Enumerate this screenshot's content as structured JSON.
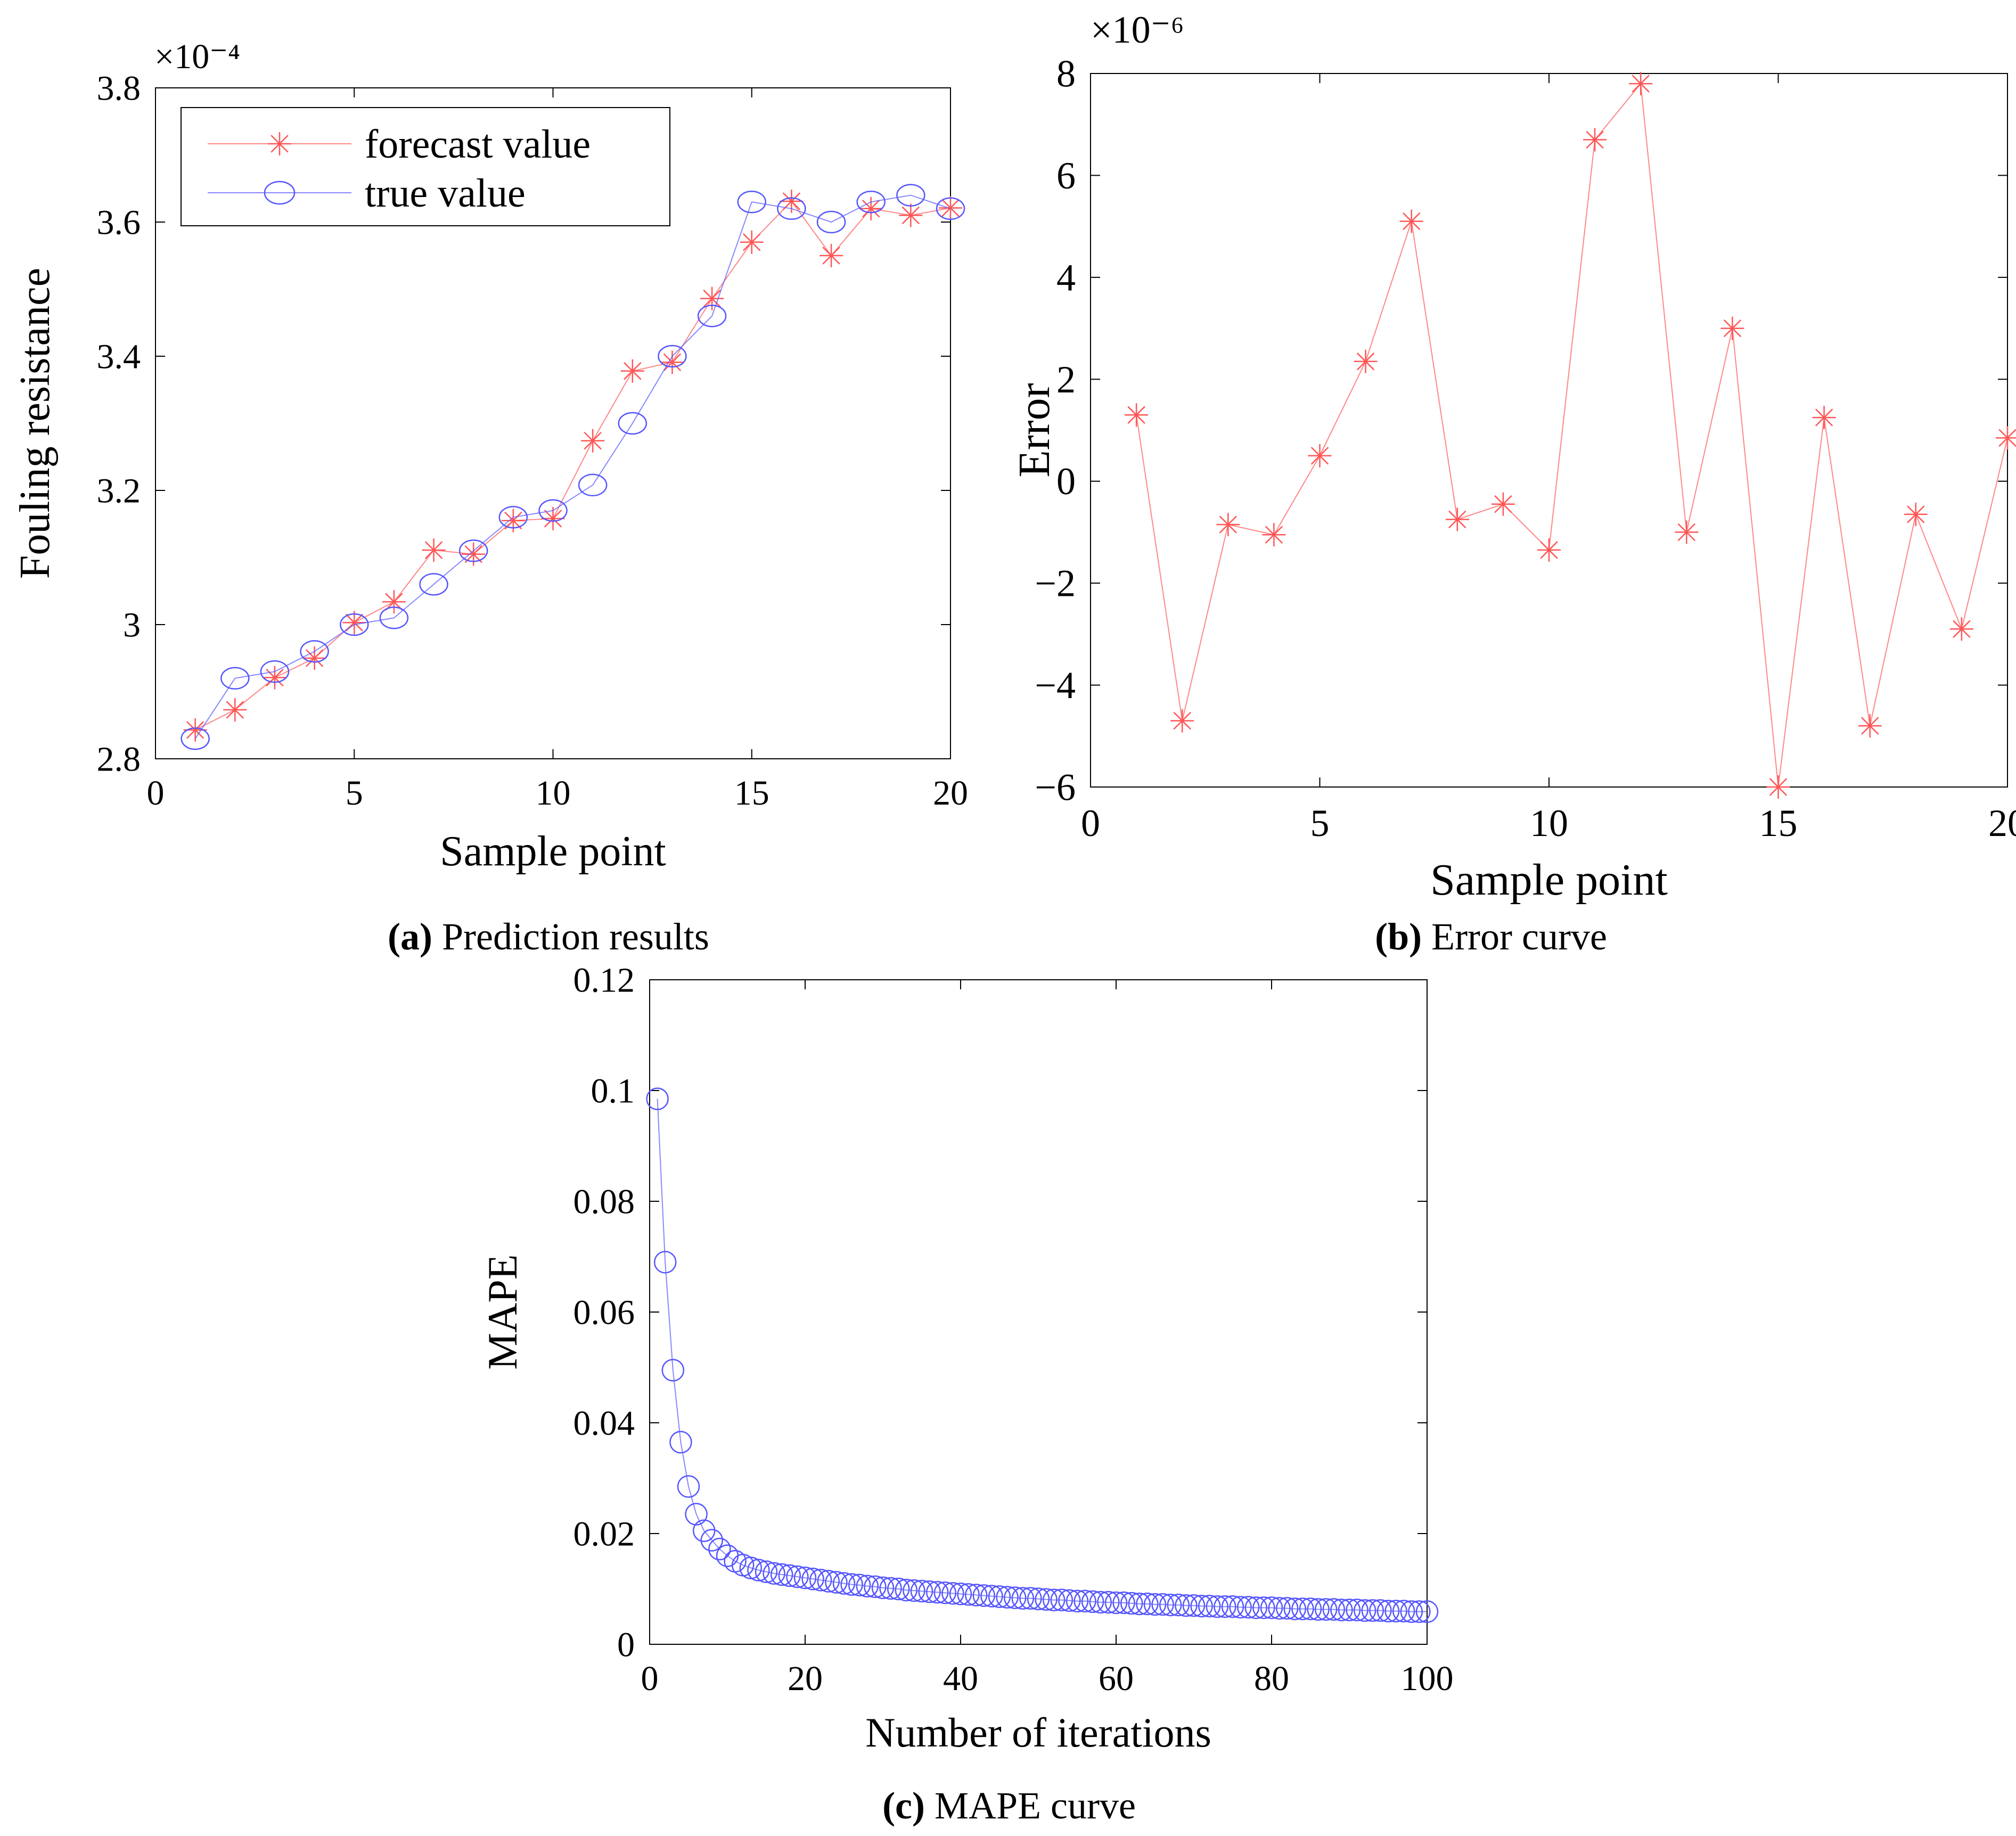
{
  "chart_data": [
    {
      "id": "a",
      "type": "line",
      "title": "",
      "xlabel": "Sample point",
      "ylabel": "Fouling resistance",
      "exponent_label": "×10⁻⁴",
      "xlim": [
        0,
        20
      ],
      "ylim": [
        2.8,
        3.8
      ],
      "xticks": [
        0,
        5,
        10,
        15,
        20
      ],
      "yticks": [
        2.8,
        3.0,
        3.2,
        3.4,
        3.6,
        3.8
      ],
      "ytick_labels": [
        "2.8",
        "3",
        "3.2",
        "3.4",
        "3.6",
        "3.8"
      ],
      "grid": false,
      "legend": "top-left",
      "x": [
        1,
        2,
        3,
        4,
        5,
        6,
        7,
        8,
        9,
        10,
        11,
        12,
        13,
        14,
        15,
        16,
        17,
        18,
        19,
        20
      ],
      "series": [
        {
          "name": "forecast value",
          "marker": "star",
          "color": "#ff5555",
          "values": [
            2.843,
            2.873,
            2.921,
            2.95,
            3.003,
            3.034,
            3.111,
            3.105,
            3.155,
            3.158,
            3.274,
            3.378,
            3.391,
            3.486,
            3.57,
            3.631,
            3.55,
            3.62,
            3.61,
            3.621
          ]
        },
        {
          "name": "true value",
          "marker": "circle",
          "color": "#5555ff",
          "values": [
            2.83,
            2.92,
            2.93,
            2.96,
            3.0,
            3.01,
            3.06,
            3.11,
            3.16,
            3.17,
            3.208,
            3.3,
            3.4,
            3.46,
            3.63,
            3.62,
            3.6,
            3.63,
            3.64,
            3.62
          ]
        }
      ],
      "caption_letter": "(a)",
      "caption_text": " Prediction results"
    },
    {
      "id": "b",
      "type": "line",
      "title": "",
      "xlabel": "Sample point",
      "ylabel": "Error",
      "exponent_label": "×10⁻⁶",
      "xlim": [
        0,
        20
      ],
      "ylim": [
        -6,
        8
      ],
      "xticks": [
        0,
        5,
        10,
        15,
        20
      ],
      "yticks": [
        -6,
        -4,
        -2,
        0,
        2,
        4,
        6,
        8
      ],
      "ytick_labels": [
        "−6",
        "−4",
        "−2",
        "0",
        "2",
        "4",
        "6",
        "8"
      ],
      "grid": false,
      "x": [
        1,
        2,
        3,
        4,
        5,
        6,
        7,
        8,
        9,
        10,
        11,
        12,
        13,
        14,
        15,
        16,
        17,
        18,
        19,
        20
      ],
      "series": [
        {
          "name": "error",
          "marker": "star",
          "color": "#ff5555",
          "values": [
            1.3,
            -4.7,
            -0.85,
            -1.05,
            0.5,
            2.35,
            5.1,
            -0.75,
            -0.45,
            -1.35,
            6.7,
            7.8,
            -1.0,
            3.0,
            -6.0,
            1.25,
            -4.8,
            -0.65,
            -2.9,
            0.85
          ]
        }
      ],
      "caption_letter": "(b)",
      "caption_text": " Error curve"
    },
    {
      "id": "c",
      "type": "line",
      "title": "",
      "xlabel": "Number of iterations",
      "ylabel": "MAPE",
      "xlim": [
        0,
        100
      ],
      "ylim": [
        0,
        0.12
      ],
      "xticks": [
        0,
        20,
        40,
        60,
        80,
        100
      ],
      "yticks": [
        0,
        0.02,
        0.04,
        0.06,
        0.08,
        0.1,
        0.12
      ],
      "ytick_labels": [
        "0",
        "0.02",
        "0.04",
        "0.06",
        "0.08",
        "0.1",
        "0.12"
      ],
      "grid": false,
      "x": [
        1,
        2,
        3,
        4,
        5,
        6,
        7,
        8,
        9,
        10,
        11,
        12,
        13,
        14,
        15,
        16,
        17,
        18,
        19,
        20,
        21,
        22,
        23,
        24,
        25,
        26,
        27,
        28,
        29,
        30,
        31,
        32,
        33,
        34,
        35,
        36,
        37,
        38,
        39,
        40,
        41,
        42,
        43,
        44,
        45,
        46,
        47,
        48,
        49,
        50,
        51,
        52,
        53,
        54,
        55,
        56,
        57,
        58,
        59,
        60,
        61,
        62,
        63,
        64,
        65,
        66,
        67,
        68,
        69,
        70,
        71,
        72,
        73,
        74,
        75,
        76,
        77,
        78,
        79,
        80,
        81,
        82,
        83,
        84,
        85,
        86,
        87,
        88,
        89,
        90,
        91,
        92,
        93,
        94,
        95,
        96,
        97,
        98,
        99,
        100
      ],
      "series": [
        {
          "name": "MAPE",
          "marker": "circle",
          "color": "#5555ff",
          "values": [
            0.0985,
            0.069,
            0.0495,
            0.0365,
            0.0285,
            0.0235,
            0.0205,
            0.0188,
            0.0172,
            0.016,
            0.015,
            0.0143,
            0.0138,
            0.0134,
            0.0131,
            0.0128,
            0.0126,
            0.0124,
            0.0122,
            0.012,
            0.0118,
            0.0116,
            0.0114,
            0.0112,
            0.011,
            0.0108,
            0.0107,
            0.0105,
            0.0104,
            0.0102,
            0.0101,
            0.01,
            0.0098,
            0.0097,
            0.0096,
            0.0095,
            0.0094,
            0.0093,
            0.0092,
            0.0091,
            0.009,
            0.0089,
            0.0088,
            0.0087,
            0.0086,
            0.0085,
            0.0084,
            0.0083,
            0.0083,
            0.0082,
            0.0081,
            0.008,
            0.008,
            0.0079,
            0.0078,
            0.0078,
            0.0077,
            0.0076,
            0.0076,
            0.0075,
            0.0075,
            0.0074,
            0.0073,
            0.0073,
            0.0072,
            0.0072,
            0.0071,
            0.0071,
            0.007,
            0.007,
            0.0069,
            0.0069,
            0.0068,
            0.0068,
            0.0068,
            0.0067,
            0.0067,
            0.0066,
            0.0066,
            0.0066,
            0.0065,
            0.0065,
            0.0064,
            0.0064,
            0.0064,
            0.0063,
            0.0063,
            0.0063,
            0.0062,
            0.0062,
            0.0062,
            0.0061,
            0.0061,
            0.0061,
            0.006,
            0.006,
            0.006,
            0.0059,
            0.0059,
            0.0059
          ]
        }
      ],
      "caption_letter": "(c)",
      "caption_text": " MAPE curve"
    }
  ]
}
